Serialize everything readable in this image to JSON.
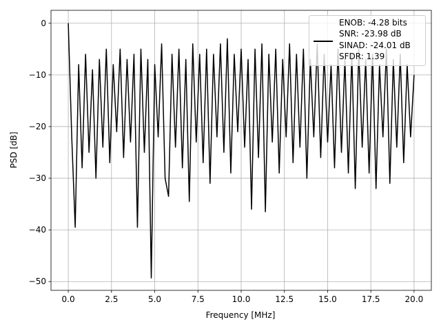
{
  "chart_data": {
    "type": "line",
    "xlabel": "Frequency [MHz]",
    "ylabel": "PSD [dB]",
    "x": [
      0,
      0.2,
      0.4,
      0.6,
      0.8,
      1.0,
      1.2,
      1.4,
      1.6,
      1.8,
      2.0,
      2.2,
      2.4,
      2.6,
      2.8,
      3.0,
      3.2,
      3.4,
      3.6,
      3.8,
      4.0,
      4.2,
      4.4,
      4.6,
      4.8,
      5.0,
      5.2,
      5.4,
      5.6,
      5.8,
      6.0,
      6.2,
      6.4,
      6.6,
      6.8,
      7.0,
      7.2,
      7.4,
      7.6,
      7.8,
      8.0,
      8.2,
      8.4,
      8.6,
      8.8,
      9.0,
      9.2,
      9.4,
      9.6,
      9.8,
      10.0,
      10.2,
      10.4,
      10.6,
      10.8,
      11.0,
      11.2,
      11.4,
      11.6,
      11.8,
      12.0,
      12.2,
      12.4,
      12.6,
      12.8,
      13.0,
      13.2,
      13.4,
      13.6,
      13.8,
      14.0,
      14.2,
      14.4,
      14.6,
      14.8,
      15.0,
      15.2,
      15.4,
      15.6,
      15.8,
      16.0,
      16.2,
      16.4,
      16.6,
      16.8,
      17.0,
      17.2,
      17.4,
      17.6,
      17.8,
      18.0,
      18.2,
      18.4,
      18.6,
      18.8,
      19.0,
      19.2,
      19.4,
      19.6,
      19.8,
      20.0
    ],
    "series": [
      {
        "name": "ENOB: -4.28 bits\nSNR: -23.98 dB\nSINAD: -24.01 dB\nSFDR: 1.39",
        "color": "#000000",
        "values": [
          0,
          -22,
          -39.5,
          -8,
          -28,
          -6,
          -25,
          -9,
          -30,
          -7,
          -24,
          -5,
          -27,
          -8,
          -21,
          -5,
          -26,
          -7,
          -23,
          -6,
          -39.5,
          -5,
          -25,
          -7,
          -49.3,
          -8,
          -22,
          -4,
          -30,
          -33.5,
          -6,
          -24,
          -5,
          -28,
          -7,
          -34.5,
          -4,
          -23,
          -6,
          -27,
          -5,
          -31,
          -6,
          -22,
          -4,
          -25,
          -3,
          -29,
          -6,
          -21,
          -5,
          -24,
          -7,
          -36,
          -5,
          -26,
          -4,
          -36.5,
          -6,
          -23,
          -5,
          -29,
          -7,
          -22,
          -4,
          -27,
          -6,
          -24,
          -5,
          -30,
          -7,
          -22,
          -4,
          -26,
          -6,
          -23,
          -8,
          -28,
          -5,
          -25,
          -7,
          -29,
          -6,
          -32,
          -5,
          -24,
          -7,
          -29,
          -6,
          -32,
          -8,
          -22,
          -5,
          -31,
          -7,
          -24,
          -6,
          -27,
          -8,
          -22,
          -10
        ]
      }
    ],
    "xlim": [
      -1,
      21
    ],
    "ylim": [
      -51.7,
      2.5
    ],
    "xticks": [
      {
        "value": 0,
        "label": "0.0"
      },
      2.5,
      {
        "value": 5,
        "label": "5.0"
      },
      7.5,
      {
        "value": 10,
        "label": "10.0"
      },
      12.5,
      {
        "value": 15,
        "label": "15.0"
      },
      17.5,
      {
        "value": 20,
        "label": "20.0"
      }
    ],
    "yticks": [
      {
        "value": -50,
        "label": "−50"
      },
      {
        "value": -40,
        "label": "−40"
      },
      {
        "value": -30,
        "label": "−30"
      },
      {
        "value": -20,
        "label": "−20"
      },
      {
        "value": -10,
        "label": "−10"
      },
      0
    ],
    "grid": true,
    "legend": "upper right"
  }
}
